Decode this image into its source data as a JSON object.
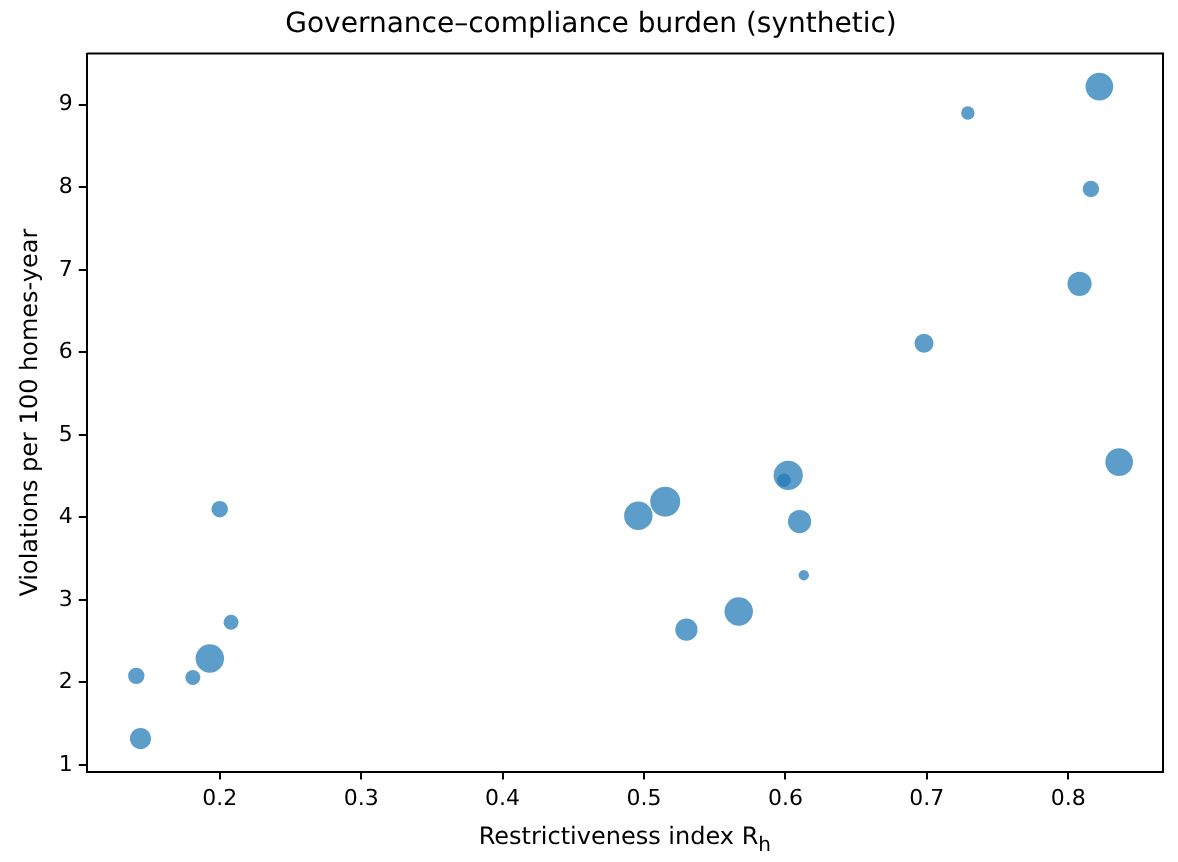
{
  "chart_data": {
    "type": "bubble",
    "title": "Governance–compliance burden (synthetic)",
    "xlabel": "Restrictiveness index R$_{h}$",
    "ylabel": "Violations per 100 homes-year",
    "x": [
      0.2,
      0.208,
      0.193,
      0.141,
      0.181,
      0.144,
      0.496,
      0.515,
      0.822,
      0.729,
      0.816,
      0.808,
      0.698,
      0.836,
      0.602,
      0.599,
      0.61,
      0.613,
      0.567,
      0.53
    ],
    "values": [
      4.1,
      2.73,
      2.29,
      2.08,
      2.06,
      1.32,
      4.02,
      4.19,
      9.22,
      8.9,
      7.98,
      6.83,
      6.11,
      4.67,
      4.51,
      4.45,
      3.95,
      3.3,
      2.86,
      2.64
    ],
    "sizes": [
      0.3,
      0.25,
      0.9,
      0.3,
      0.25,
      0.5,
      0.9,
      1,
      0.85,
      0.2,
      0.3,
      0.65,
      0.4,
      0.85,
      0.95,
      0.2,
      0.6,
      0.12,
      0.9,
      0.55
    ],
    "color": "#1f77b4",
    "xlim": [
      0.106,
      0.867
    ],
    "xticks": [
      0.2,
      0.3,
      0.4,
      0.5,
      0.6,
      0.7,
      0.8
    ],
    "ylim": [
      0.92,
      9.62
    ],
    "yticks": [
      1,
      2,
      3,
      4,
      5,
      6,
      7,
      8,
      9
    ],
    "grid": false,
    "legend": false
  }
}
